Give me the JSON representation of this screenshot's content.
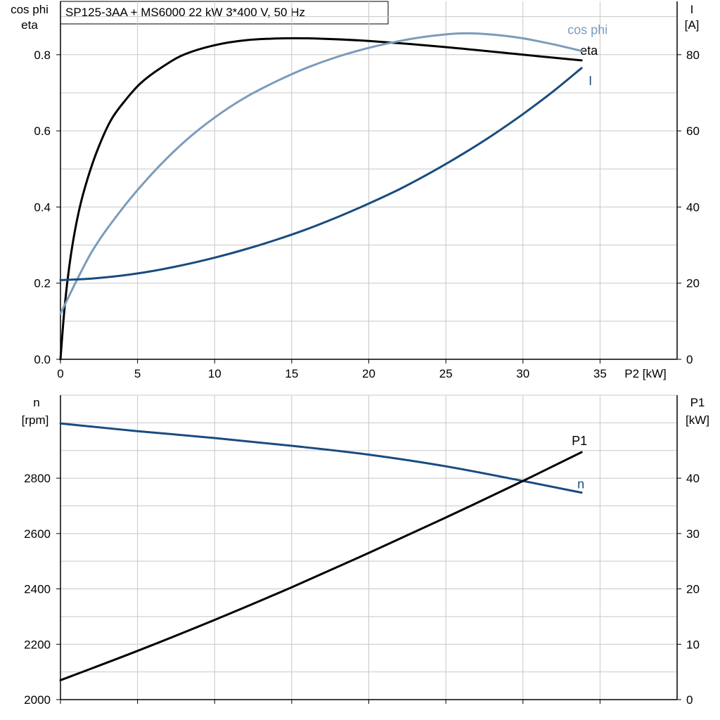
{
  "colors": {
    "eta": "#000000",
    "cos_phi": "#7a9cbb",
    "I": "#184c7e",
    "n": "#184c7e",
    "P1": "#000000",
    "grid": "#c8c8c8",
    "frame": "#000000"
  },
  "chart_data": [
    {
      "type": "line",
      "title": "SP125-3AA + MS6000   22 kW   3*400 V, 50 Hz",
      "xlabel": "P2 [kW]",
      "ylabel_left": [
        "cos phi",
        "eta"
      ],
      "ylabel_right": [
        "I",
        "[A]"
      ],
      "xlim": [
        0,
        40
      ],
      "xticks": [
        0,
        5,
        10,
        15,
        20,
        25,
        30,
        35
      ],
      "ylim_left": [
        0,
        0.94
      ],
      "yticks_left": [
        "0.0",
        "0.2",
        "0.4",
        "0.6",
        "0.8"
      ],
      "ylim_right": [
        0,
        94
      ],
      "yticks_right": [
        "0",
        "20",
        "40",
        "60",
        "80"
      ],
      "grid": true,
      "series": [
        {
          "name": "eta",
          "axis": "left",
          "x": [
            0,
            0.3,
            0.7,
            1.2,
            1.8,
            2.5,
            3.3,
            4.2,
            5.2,
            6.5,
            8,
            10,
            12,
            14.5,
            17,
            20,
            25,
            30,
            33.8
          ],
          "y": [
            0,
            0.15,
            0.28,
            0.39,
            0.48,
            0.56,
            0.63,
            0.68,
            0.725,
            0.765,
            0.8,
            0.825,
            0.838,
            0.843,
            0.842,
            0.836,
            0.82,
            0.8,
            0.785
          ]
        },
        {
          "name": "cos phi",
          "axis": "left",
          "x": [
            0,
            2,
            4,
            6,
            8,
            10,
            12,
            14,
            16,
            18,
            20,
            22,
            24,
            26,
            28,
            30,
            32,
            33.8
          ],
          "y": [
            0.12,
            0.28,
            0.395,
            0.49,
            0.57,
            0.635,
            0.688,
            0.73,
            0.766,
            0.795,
            0.818,
            0.836,
            0.849,
            0.856,
            0.853,
            0.843,
            0.827,
            0.81
          ]
        },
        {
          "name": "I",
          "axis": "right",
          "x": [
            0,
            2,
            4,
            6,
            8,
            10,
            12,
            14,
            16,
            18,
            20,
            22,
            24,
            26,
            28,
            30,
            32,
            33.8
          ],
          "y": [
            20.8,
            21.2,
            22,
            23.2,
            24.8,
            26.7,
            28.9,
            31.4,
            34.2,
            37.4,
            40.9,
            44.7,
            49,
            53.7,
            58.8,
            64.4,
            70.5,
            76.5
          ]
        }
      ]
    },
    {
      "type": "line",
      "xlim": [
        0,
        40
      ],
      "xticks": [
        0,
        5,
        10,
        15,
        20,
        25,
        30,
        35
      ],
      "ylabel_left": [
        "n",
        "[rpm]"
      ],
      "ylabel_right": [
        "P1",
        "[kW]"
      ],
      "ylim_left": [
        2000,
        3100
      ],
      "yticks_left": [
        "2000",
        "2200",
        "2400",
        "2600",
        "2800"
      ],
      "ylim_right": [
        0,
        55
      ],
      "yticks_right": [
        "0",
        "10",
        "20",
        "30",
        "40"
      ],
      "grid": true,
      "series": [
        {
          "name": "n",
          "axis": "left",
          "x": [
            0,
            5,
            10,
            15,
            20,
            25,
            30,
            33.8
          ],
          "y": [
            2998,
            2970,
            2945,
            2917,
            2885,
            2843,
            2790,
            2748
          ]
        },
        {
          "name": "P1",
          "axis": "right",
          "x": [
            0,
            5,
            10,
            15,
            20,
            25,
            30,
            33.8
          ],
          "y": [
            3.5,
            8.8,
            14.4,
            20.3,
            26.5,
            32.9,
            39.5,
            44.7
          ]
        }
      ]
    }
  ]
}
